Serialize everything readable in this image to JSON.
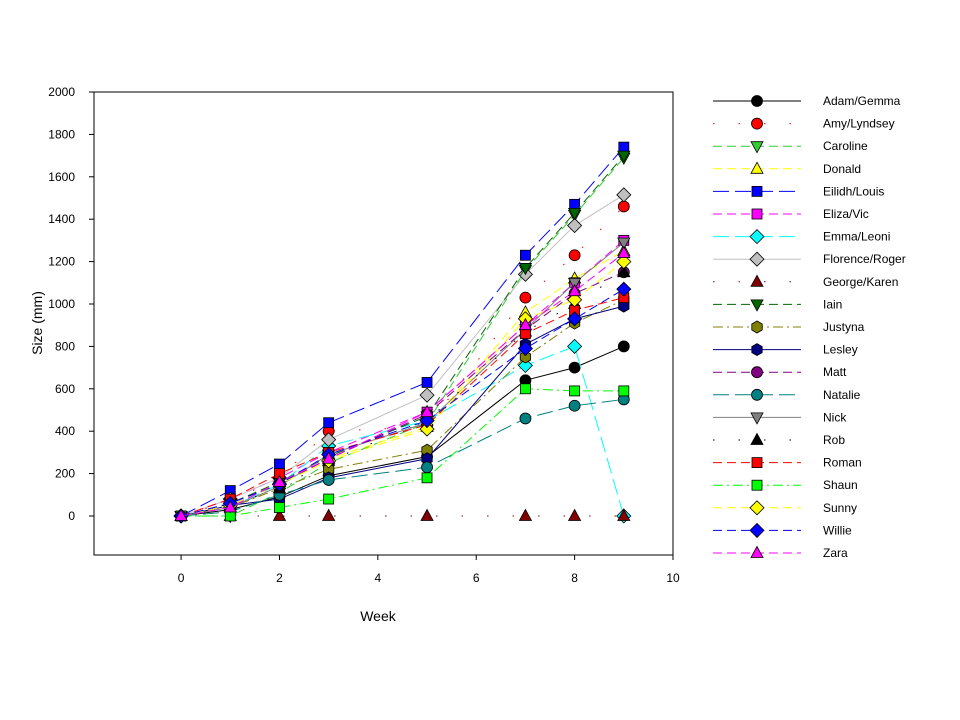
{
  "chart_data": {
    "type": "line",
    "xlabel": "Week",
    "ylabel": "Size (mm)",
    "xlim": [
      -1.77,
      10
    ],
    "ylim": [
      -184,
      2000
    ],
    "xticks": [
      0,
      2,
      4,
      6,
      8,
      10
    ],
    "yticks": [
      0,
      200,
      400,
      600,
      800,
      1000,
      1200,
      1400,
      1600,
      1800,
      2000
    ],
    "grid": false,
    "legend_position": "right",
    "x": [
      0,
      1,
      2,
      3,
      5,
      7,
      8,
      9
    ],
    "series": [
      {
        "name": "Adam/Gemma",
        "color": "#000000",
        "marker": "circle",
        "line_style": "solid",
        "values": [
          0,
          30,
          90,
          190,
          280,
          640,
          700,
          800
        ]
      },
      {
        "name": "Amy/Lyndsey",
        "color": "#ff0000",
        "marker": "circle",
        "line_style": "dotted",
        "values": [
          0,
          70,
          180,
          400,
          420,
          1030,
          1230,
          1460
        ]
      },
      {
        "name": "Caroline",
        "color": "#33cc33",
        "marker": "triangle-down",
        "line_style": "dashed",
        "values": [
          0,
          0,
          110,
          250,
          440,
          1160,
          1420,
          1690
        ]
      },
      {
        "name": "Donald",
        "color": "#ffff00",
        "marker": "triangle-up",
        "line_style": "dashed",
        "values": [
          0,
          60,
          150,
          270,
          420,
          960,
          1120,
          1250
        ]
      },
      {
        "name": "Eilidh/Louis",
        "color": "#0000ff",
        "marker": "square",
        "line_style": "long-dash",
        "values": [
          0,
          120,
          245,
          440,
          630,
          1230,
          1470,
          1740
        ]
      },
      {
        "name": "Eliza/Vic",
        "color": "#ff00ff",
        "marker": "square",
        "line_style": "dashed",
        "values": [
          0,
          80,
          180,
          300,
          490,
          900,
          1100,
          1300
        ]
      },
      {
        "name": "Emma/Leoni",
        "color": "#00ffff",
        "marker": "diamond",
        "line_style": "long-dash",
        "values": [
          0,
          40,
          150,
          330,
          450,
          710,
          800,
          0
        ]
      },
      {
        "name": "Florence/Roger",
        "color": "#c0c0c0",
        "marker": "diamond",
        "line_style": "solid",
        "values": [
          0,
          80,
          180,
          360,
          570,
          1140,
          1370,
          1515
        ]
      },
      {
        "name": "George/Karen",
        "color": "#800000",
        "marker": "triangle-up",
        "line_style": "dotted",
        "values": [
          0,
          0,
          0,
          0,
          0,
          0,
          0,
          0
        ]
      },
      {
        "name": "Iain",
        "color": "#006600",
        "marker": "triangle-down",
        "line_style": "dashed",
        "values": [
          0,
          60,
          160,
          280,
          470,
          1170,
          1430,
          1700
        ]
      },
      {
        "name": "Justyna",
        "color": "#808000",
        "marker": "hexagon",
        "line_style": "dash-dot",
        "values": [
          0,
          40,
          130,
          220,
          310,
          750,
          910,
          1020
        ]
      },
      {
        "name": "Lesley",
        "color": "#000080",
        "marker": "hexagon",
        "line_style": "solid",
        "values": [
          0,
          50,
          80,
          180,
          270,
          810,
          930,
          990
        ]
      },
      {
        "name": "Matt",
        "color": "#800080",
        "marker": "circle",
        "line_style": "dashed",
        "values": [
          0,
          50,
          150,
          270,
          480,
          880,
          1050,
          1150
        ]
      },
      {
        "name": "Natalie",
        "color": "#008080",
        "marker": "circle",
        "line_style": "long-dash",
        "values": [
          0,
          20,
          100,
          170,
          230,
          460,
          520,
          550
        ]
      },
      {
        "name": "Nick",
        "color": "#808080",
        "marker": "triangle-down",
        "line_style": "solid",
        "values": [
          0,
          40,
          140,
          290,
          440,
          880,
          1100,
          1290
        ]
      },
      {
        "name": "Rob",
        "color": "#000000",
        "marker": "triangle-up",
        "line_style": "dotted",
        "values": [
          0,
          50,
          130,
          260,
          450,
          870,
          1000,
          1150
        ]
      },
      {
        "name": "Roman",
        "color": "#ff0000",
        "marker": "square",
        "line_style": "dashed",
        "values": [
          0,
          80,
          200,
          300,
          430,
          860,
          970,
          1030
        ]
      },
      {
        "name": "Shaun",
        "color": "#00ff00",
        "marker": "square",
        "line_style": "dash-dot",
        "values": [
          0,
          0,
          40,
          80,
          180,
          600,
          590,
          590
        ]
      },
      {
        "name": "Sunny",
        "color": "#ffff00",
        "marker": "diamond",
        "line_style": "dashed",
        "values": [
          0,
          50,
          150,
          260,
          410,
          930,
          1020,
          1200
        ]
      },
      {
        "name": "Willie",
        "color": "#0000ff",
        "marker": "diamond",
        "line_style": "dashed",
        "values": [
          0,
          60,
          150,
          290,
          450,
          790,
          930,
          1070
        ]
      },
      {
        "name": "Zara",
        "color": "#ff00ff",
        "marker": "triangle-up",
        "line_style": "dashed",
        "values": [
          0,
          40,
          160,
          270,
          490,
          900,
          1060,
          1240
        ]
      }
    ]
  }
}
